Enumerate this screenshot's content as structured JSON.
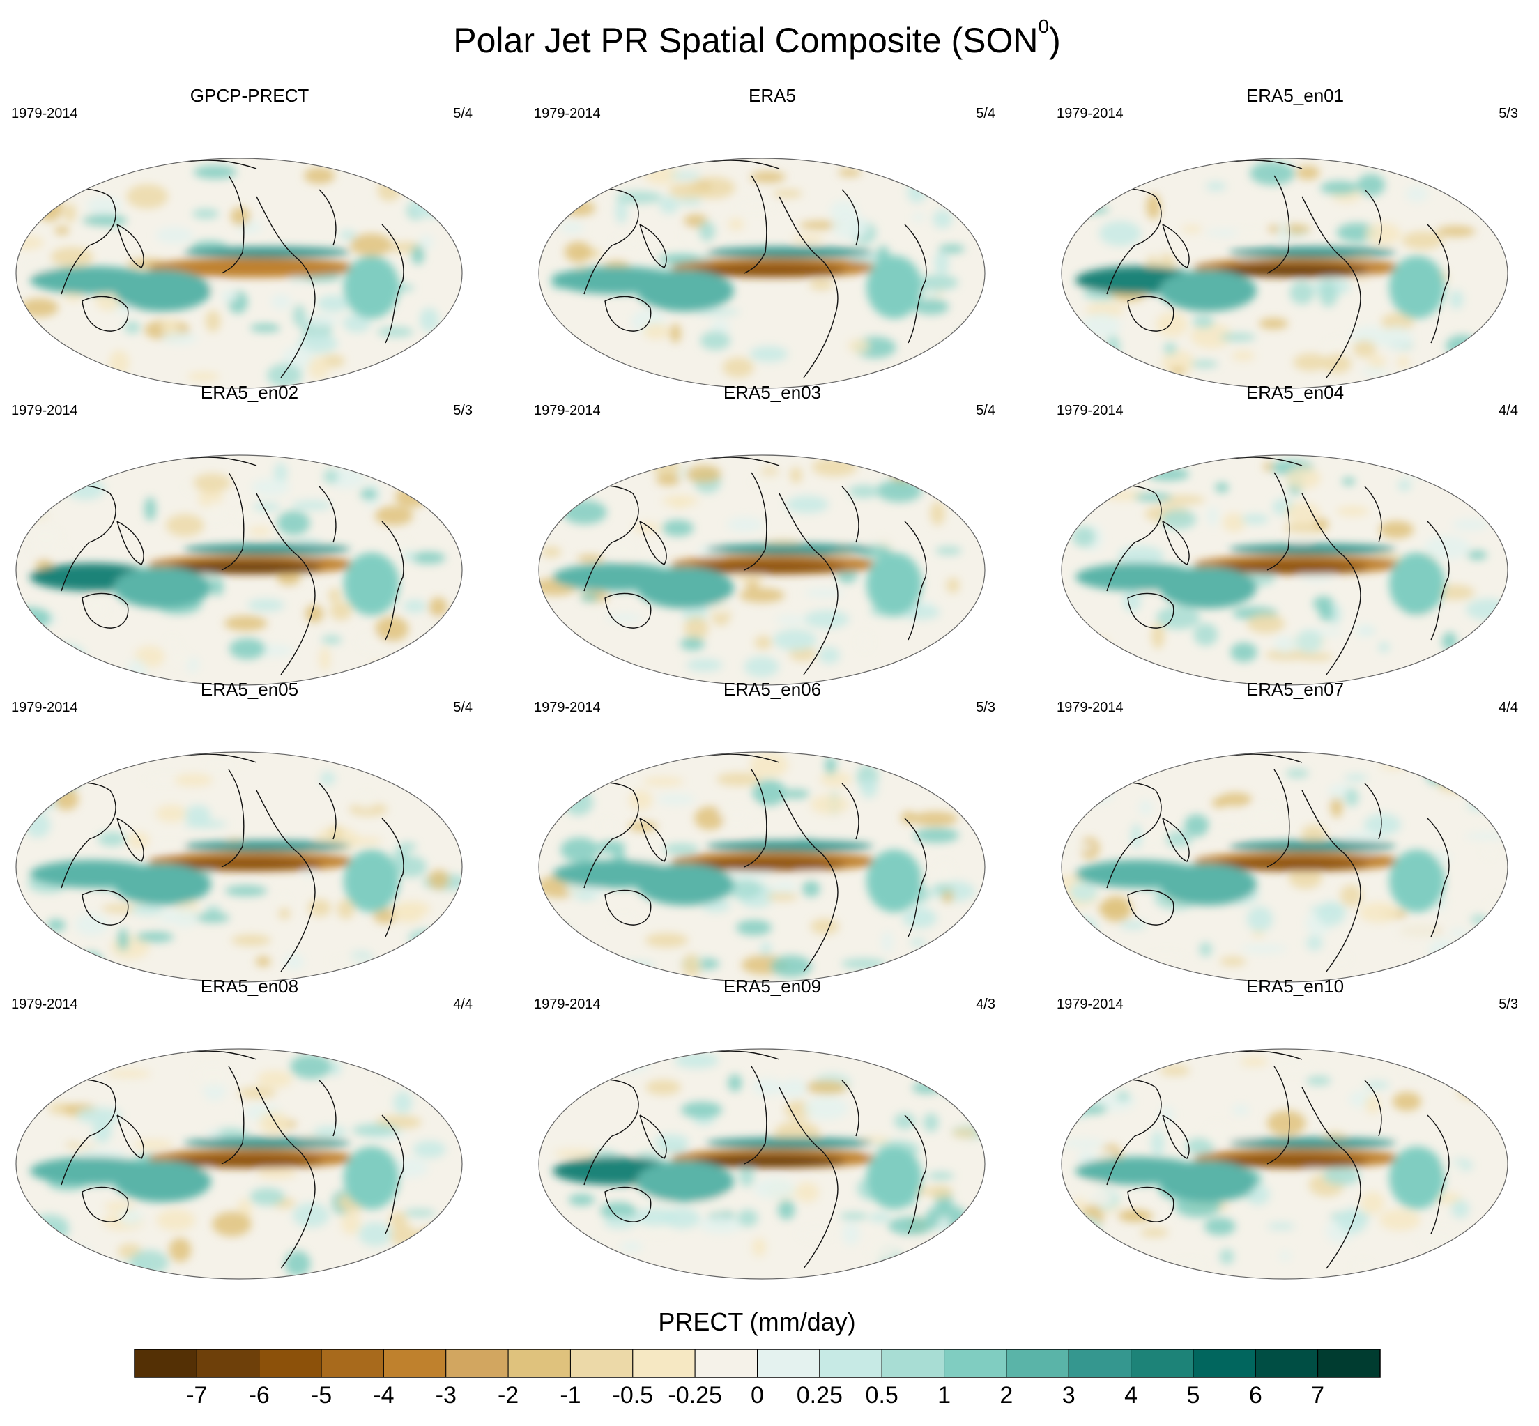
{
  "figure": {
    "title": "Polar Jet PR Spatial Composite (SON",
    "title_superscript": "0",
    "title_close": ")"
  },
  "panels": [
    {
      "name": "GPCP-PRECT",
      "period": "1979-2014",
      "ratio": "5/4",
      "equator_strength": 0.55,
      "seed": 3
    },
    {
      "name": "ERA5",
      "period": "1979-2014",
      "ratio": "5/4",
      "equator_strength": 0.8,
      "seed": 7
    },
    {
      "name": "ERA5_en01",
      "period": "1979-2014",
      "ratio": "5/3",
      "equator_strength": 1.0,
      "seed": 11
    },
    {
      "name": "ERA5_en02",
      "period": "1979-2014",
      "ratio": "5/3",
      "equator_strength": 1.0,
      "seed": 13
    },
    {
      "name": "ERA5_en03",
      "period": "1979-2014",
      "ratio": "5/4",
      "equator_strength": 0.8,
      "seed": 17
    },
    {
      "name": "ERA5_en04",
      "period": "1979-2014",
      "ratio": "4/4",
      "equator_strength": 0.9,
      "seed": 19
    },
    {
      "name": "ERA5_en05",
      "period": "1979-2014",
      "ratio": "5/4",
      "equator_strength": 0.75,
      "seed": 23
    },
    {
      "name": "ERA5_en06",
      "period": "1979-2014",
      "ratio": "5/3",
      "equator_strength": 0.85,
      "seed": 29
    },
    {
      "name": "ERA5_en07",
      "period": "1979-2014",
      "ratio": "4/4",
      "equator_strength": 0.85,
      "seed": 31
    },
    {
      "name": "ERA5_en08",
      "period": "1979-2014",
      "ratio": "4/4",
      "equator_strength": 0.85,
      "seed": 37
    },
    {
      "name": "ERA5_en09",
      "period": "1979-2014",
      "ratio": "4/3",
      "equator_strength": 1.0,
      "seed": 41
    },
    {
      "name": "ERA5_en10",
      "period": "1979-2014",
      "ratio": "5/3",
      "equator_strength": 0.9,
      "seed": 43
    }
  ],
  "colorbar": {
    "title": "PRECT (mm/day)",
    "ticks": [
      "-7",
      "-6",
      "-5",
      "-4",
      "-3",
      "-2",
      "-1",
      "-0.5",
      "-0.25",
      "0",
      "0.25",
      "0.5",
      "1",
      "2",
      "3",
      "4",
      "5",
      "6",
      "7"
    ],
    "colors": [
      "#543005",
      "#6e400a",
      "#8c510a",
      "#a86a1c",
      "#bf812d",
      "#d2a660",
      "#dfc27d",
      "#ecd9a8",
      "#f6e8c3",
      "#f5f2e9",
      "#e4f2ef",
      "#c7eae5",
      "#a8ddd4",
      "#80cdc1",
      "#5ab4a8",
      "#35978f",
      "#1d8378",
      "#01665e",
      "#004e44",
      "#003c30"
    ]
  }
}
